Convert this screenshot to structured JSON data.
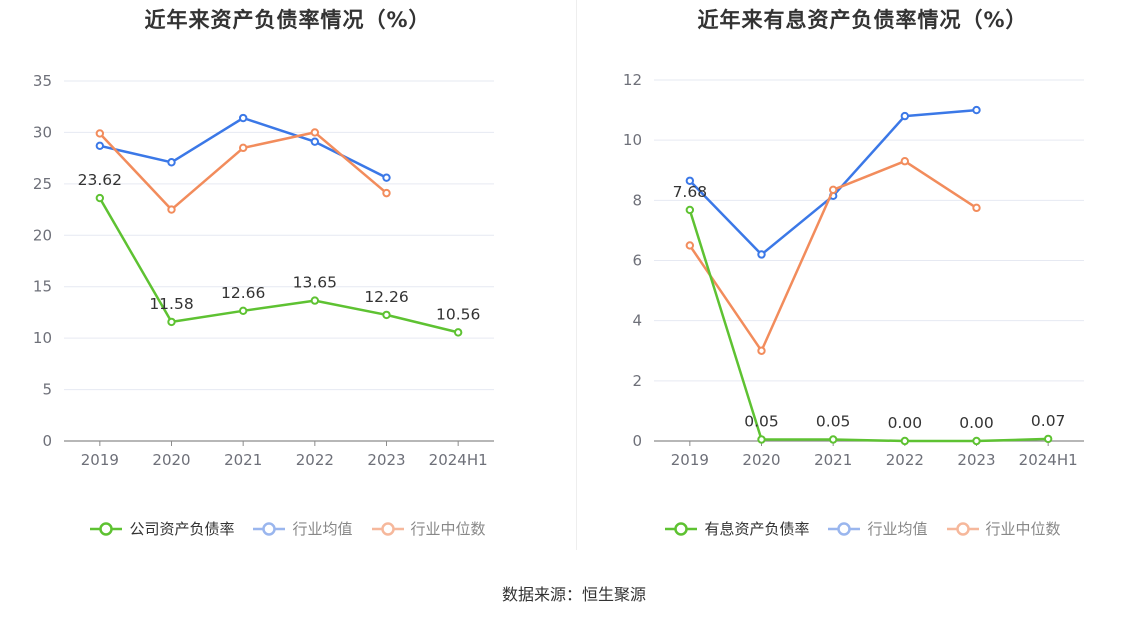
{
  "source_text": "数据来源：恒生聚源",
  "chart_data": [
    {
      "type": "line",
      "title": "近年来资产负债率情况（%）",
      "categories": [
        "2019",
        "2020",
        "2021",
        "2022",
        "2023",
        "2024H1"
      ],
      "yticks": [
        "0",
        "5",
        "10",
        "15",
        "20",
        "25",
        "30",
        "35"
      ],
      "ylim": [
        0,
        35
      ],
      "grid": true,
      "legend_position": "bottom",
      "series": [
        {
          "name": "公司资产负债率",
          "color": "#5ec232",
          "values": [
            23.62,
            11.58,
            12.66,
            13.65,
            12.26,
            10.56
          ],
          "labels": [
            "23.62",
            "11.58",
            "12.66",
            "13.65",
            "12.26",
            "10.56"
          ]
        },
        {
          "name": "行业均值",
          "color": "#3b78e7",
          "values": [
            28.7,
            27.1,
            31.4,
            29.1,
            25.6,
            null
          ],
          "labels": []
        },
        {
          "name": "行业中位数",
          "color": "#f28c5c",
          "values": [
            29.9,
            22.5,
            28.5,
            30.0,
            24.1,
            null
          ],
          "labels": []
        }
      ]
    },
    {
      "type": "line",
      "title": "近年来有息资产负债率情况（%）",
      "categories": [
        "2019",
        "2020",
        "2021",
        "2022",
        "2023",
        "2024H1"
      ],
      "yticks": [
        "0",
        "2",
        "4",
        "6",
        "8",
        "10",
        "12"
      ],
      "ylim": [
        0,
        12
      ],
      "grid": true,
      "legend_position": "bottom",
      "series": [
        {
          "name": "有息资产负债率",
          "color": "#5ec232",
          "values": [
            7.68,
            0.05,
            0.05,
            0.0,
            0.0,
            0.07
          ],
          "labels": [
            "7.68",
            "0.05",
            "0.05",
            "0.00",
            "0.00",
            "0.07"
          ]
        },
        {
          "name": "行业均值",
          "color": "#3b78e7",
          "values": [
            8.65,
            6.2,
            8.15,
            10.8,
            11.0,
            null
          ],
          "labels": []
        },
        {
          "name": "行业中位数",
          "color": "#f28c5c",
          "values": [
            6.5,
            3.0,
            8.35,
            9.3,
            7.75,
            null
          ],
          "labels": []
        }
      ]
    }
  ]
}
